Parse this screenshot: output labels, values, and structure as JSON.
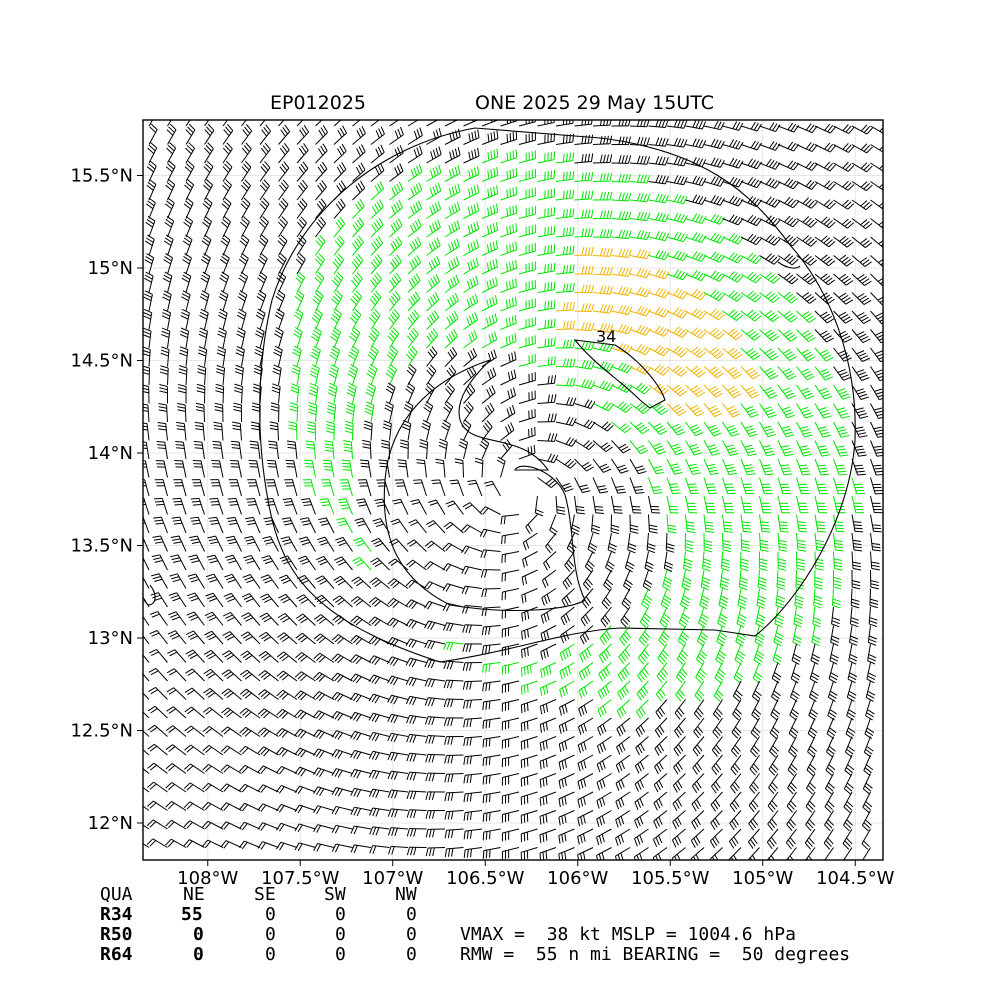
{
  "header": {
    "storm_id": "EP012025",
    "storm_title": "ONE 2025 29 May 15UTC"
  },
  "axes": {
    "lon_ticks": [
      "108°W",
      "107.5°W",
      "107°W",
      "106.5°W",
      "106°W",
      "105.5°W",
      "105°W",
      "104.5°W"
    ],
    "lon_values": [
      -108,
      -107.5,
      -107,
      -106.5,
      -106,
      -105.5,
      -105,
      -104.5
    ],
    "lat_ticks": [
      "15.5°N",
      "15°N",
      "14.5°N",
      "14°N",
      "13.5°N",
      "13°N",
      "12.5°N",
      "12°N"
    ],
    "lat_values": [
      15.5,
      15,
      14.5,
      14,
      13.5,
      13,
      12.5,
      12
    ],
    "lon_range": [
      -108.35,
      -104.35
    ],
    "lat_range": [
      11.8,
      15.8
    ],
    "grid": true
  },
  "storm": {
    "center_lon": -106.3,
    "center_lat": 13.8,
    "contour_label": "34"
  },
  "colors": {
    "below_34kt": "#000000",
    "kt_34_to_50": "#00e600",
    "kt_50_to_64": "#f0b400",
    "contour": "#000000"
  },
  "radii_table": {
    "header": [
      "QUA",
      "NE",
      "SE",
      "SW",
      "NW"
    ],
    "rows": [
      {
        "label": "R34",
        "values": [
          "55",
          "0",
          "0",
          "0"
        ]
      },
      {
        "label": "R50",
        "values": [
          "0",
          "0",
          "0",
          "0"
        ]
      },
      {
        "label": "R64",
        "values": [
          "0",
          "0",
          "0",
          "0"
        ]
      }
    ]
  },
  "stats": {
    "line1": "VMAX =  38 kt MSLP = 1004.6 hPa",
    "line2": "RMW =  55 n mi BEARING =  50 degrees"
  }
}
